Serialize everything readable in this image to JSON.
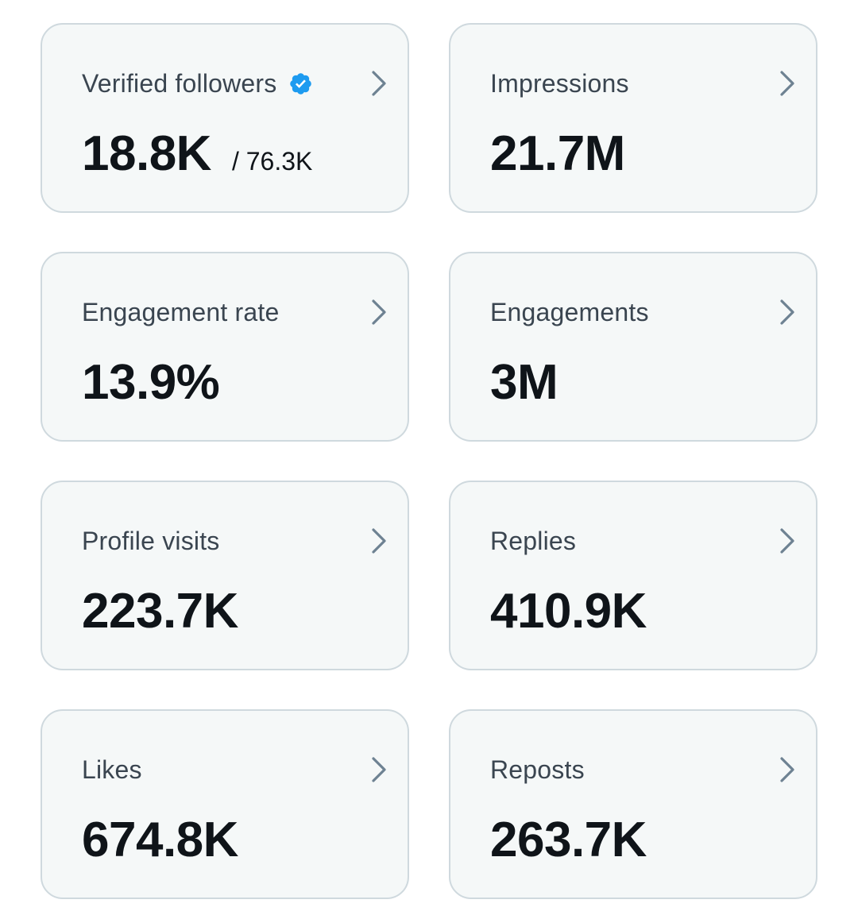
{
  "accent_color": "#1d9bf0",
  "cards": [
    {
      "label": "Verified followers",
      "value": "18.8K",
      "subvalue": "/ 76.3K",
      "icon": "verified-badge-icon"
    },
    {
      "label": "Impressions",
      "value": "21.7M"
    },
    {
      "label": "Engagement rate",
      "value": "13.9%"
    },
    {
      "label": "Engagements",
      "value": "3M"
    },
    {
      "label": "Profile visits",
      "value": "223.7K"
    },
    {
      "label": "Replies",
      "value": "410.9K"
    },
    {
      "label": "Likes",
      "value": "674.8K"
    },
    {
      "label": "Reposts",
      "value": "263.7K"
    }
  ]
}
